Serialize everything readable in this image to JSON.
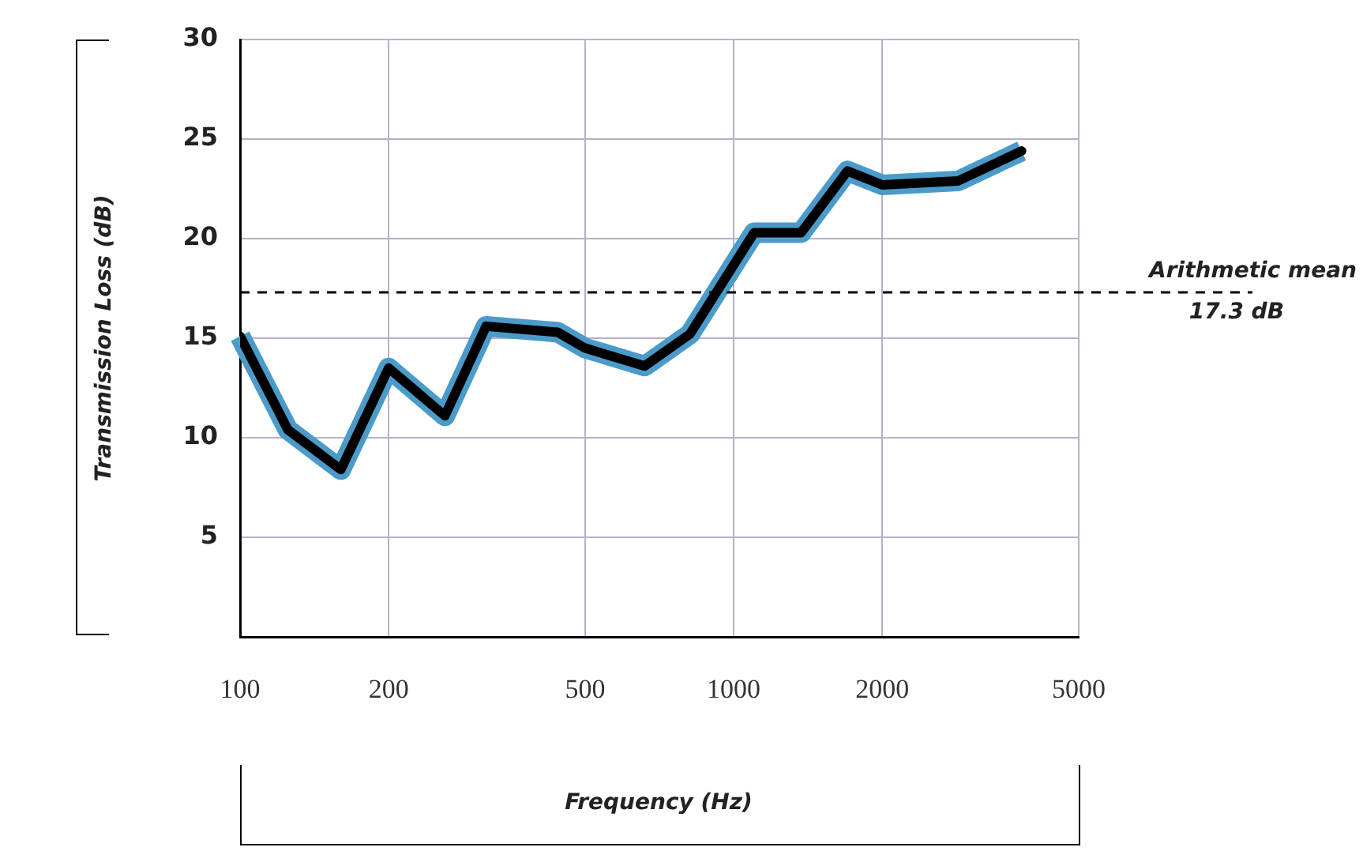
{
  "chart_data": {
    "type": "line",
    "xlabel": "Frequency (Hz)",
    "ylabel": "Transmission Loss (dB)",
    "x": [
      100,
      125,
      160,
      200,
      260,
      315,
      440,
      500,
      660,
      815,
      1100,
      1370,
      1700,
      2000,
      2850,
      3830
    ],
    "series": [
      {
        "color": "#000000",
        "values": [
          15.1,
          10.4,
          8.4,
          13.5,
          11.1,
          15.6,
          15.3,
          14.5,
          13.6,
          15.2,
          20.3,
          20.3,
          23.4,
          22.7,
          22.9,
          24.4
        ]
      }
    ],
    "xlim": [
      100,
      5000
    ],
    "xticks": [
      100,
      200,
      500,
      1000,
      2000,
      5000
    ],
    "ylim": [
      0,
      30
    ],
    "yticks": [
      {
        "value": 0,
        "label": null
      },
      5,
      10,
      15,
      20,
      25,
      30
    ],
    "log": "x",
    "grid": true,
    "legend": false,
    "marker": "none",
    "line_style": "solid",
    "ref_lines": [
      {
        "axis": "y",
        "value": 17.3,
        "label": "Arithmetic mean\n17.3 dB",
        "line_style": "dashed",
        "color": "#000000"
      }
    ]
  }
}
